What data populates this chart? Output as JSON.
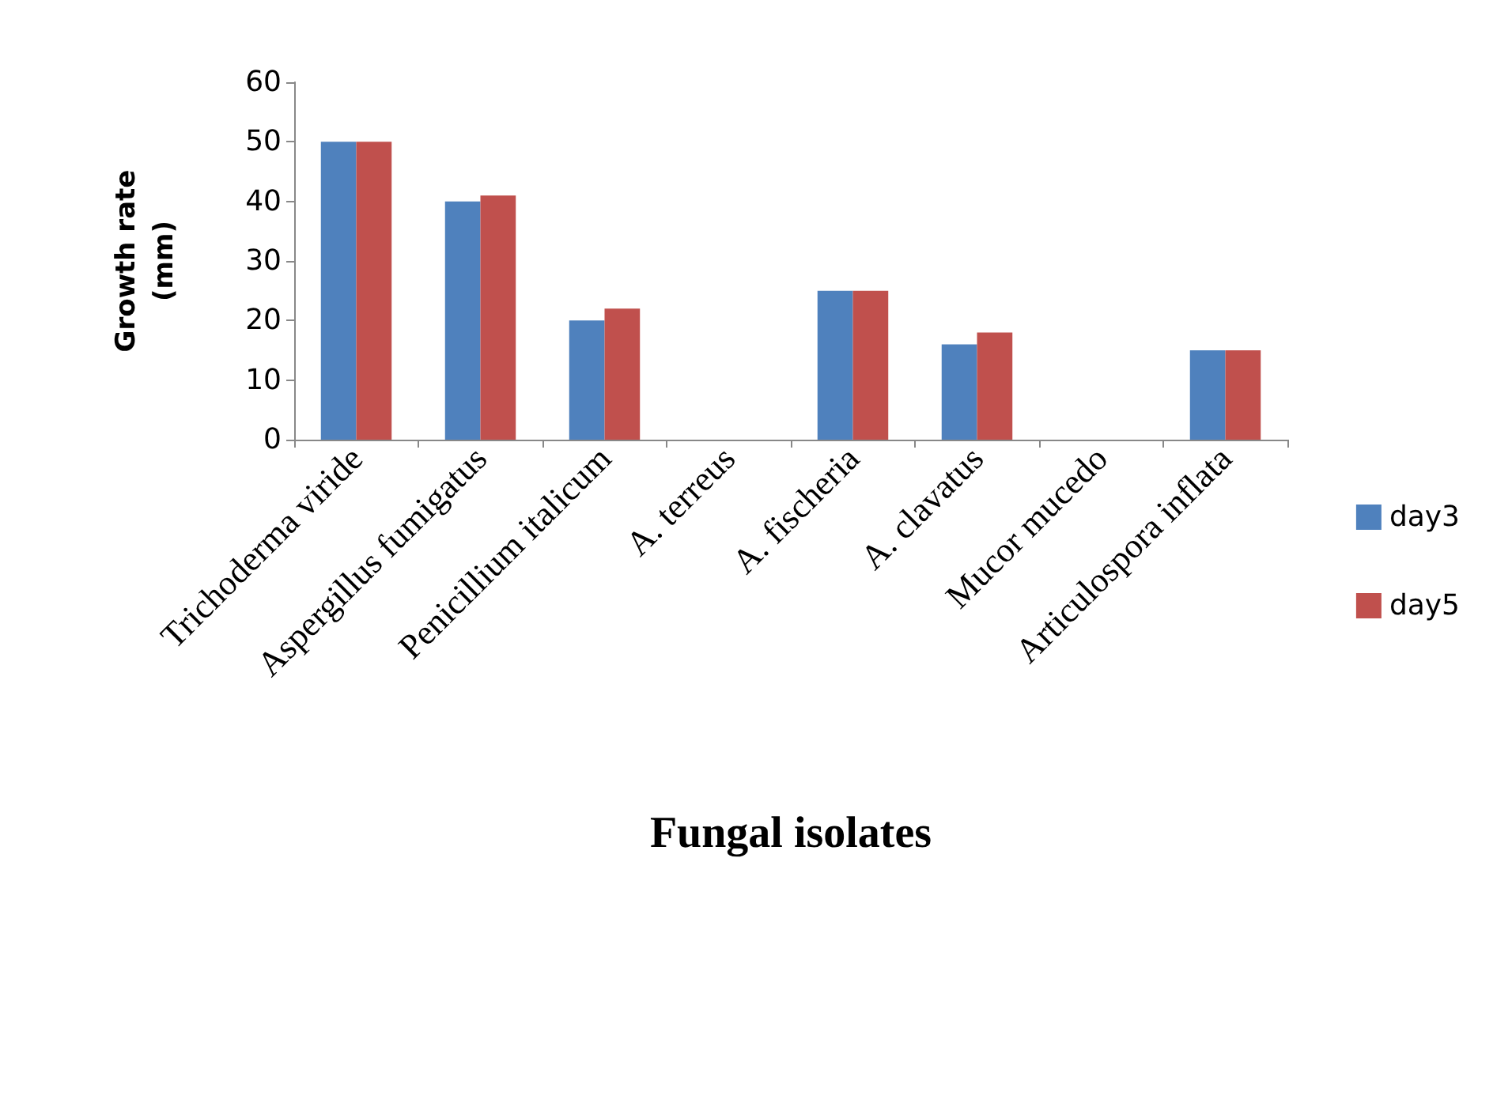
{
  "chart_data": {
    "type": "bar",
    "xlabel": "Fungal isolates",
    "ylabel": "Growth rate\n(mm)",
    "categories": [
      "Trichoderma viride",
      "Aspergillus fumigatus",
      "Penicillium italicum",
      "A. terreus",
      "A. fischeria",
      "A. clavatus",
      "Mucor mucedo",
      "Articulospora inflata"
    ],
    "series": [
      {
        "name": "day3",
        "color": "#4f81bd",
        "values": [
          50,
          40,
          20,
          0,
          25,
          16,
          0,
          15
        ]
      },
      {
        "name": "day5",
        "color": "#c0504d",
        "values": [
          50,
          41,
          22,
          0,
          25,
          18,
          0,
          15
        ]
      }
    ],
    "ylim": [
      0,
      60
    ],
    "yticks": [
      0,
      10,
      20,
      30,
      40,
      50,
      60
    ],
    "grid": false,
    "legend": "right"
  }
}
